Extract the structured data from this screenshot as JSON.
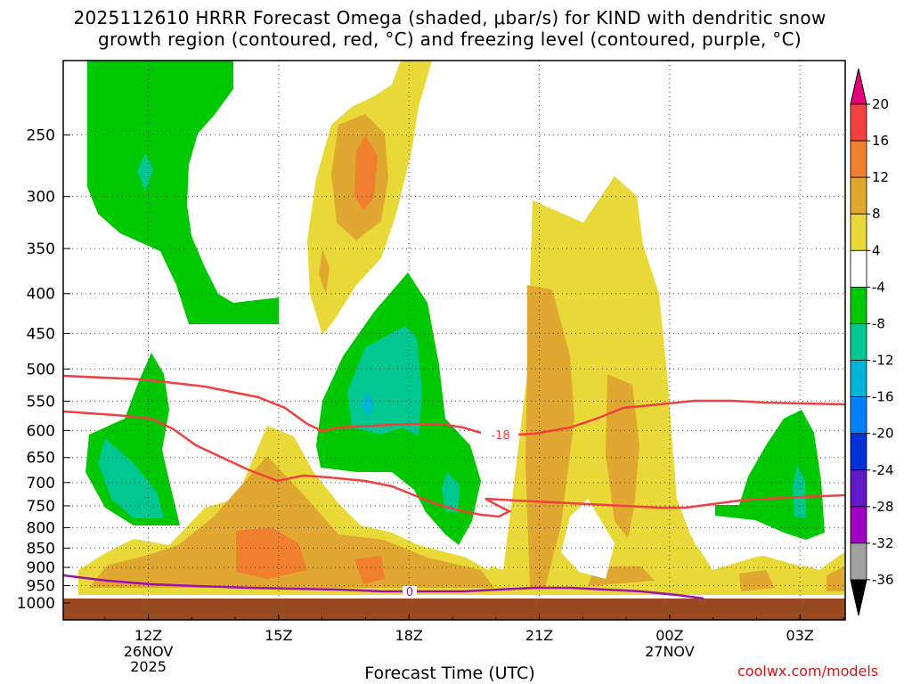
{
  "title_line1": "2025112610 HRRR Forecast Omega (shaded, μbar/s) for KIND with dendritic snow",
  "title_line2": "growth region (contoured, red, °C) and freezing level (contoured, purple, °C)",
  "xlabel": "Forecast Time (UTC)",
  "credit": "coolwx.com/models",
  "chart_data": {
    "type": "time-height cross section",
    "location": "KIND",
    "model": "HRRR",
    "run": "2025112610",
    "x_ticks": [
      {
        "label": "12Z",
        "sub": [
          "26NOV",
          "2025"
        ]
      },
      {
        "label": "15Z",
        "sub": []
      },
      {
        "label": "18Z",
        "sub": []
      },
      {
        "label": "21Z",
        "sub": []
      },
      {
        "label": "00Z",
        "sub": [
          "27NOV"
        ]
      },
      {
        "label": "03Z",
        "sub": []
      }
    ],
    "x_range_hours_from_26nov12z": [
      -2,
      16
    ],
    "y_axis": {
      "units": "hPa",
      "ticks": [
        250,
        300,
        350,
        400,
        450,
        500,
        550,
        600,
        650,
        700,
        750,
        800,
        850,
        900,
        950,
        1000
      ],
      "range": [
        1000,
        200
      ]
    },
    "grid": true,
    "colorbar": {
      "levels": [
        20,
        16,
        12,
        8,
        4,
        -4,
        -8,
        -12,
        -16,
        -20,
        -24,
        -28,
        -32,
        -36
      ],
      "colors": [
        "#e8007a",
        "#f04040",
        "#f08030",
        "#e0a830",
        "#e8d838",
        "#ffffff",
        "#00c800",
        "#00c890",
        "#00b4d8",
        "#0080ff",
        "#0030d8",
        "#6018c8",
        "#a000c0",
        "#a0a0a0",
        "#000000"
      ]
    },
    "contours": [
      {
        "name": "dendritic -18",
        "color": "#f04040",
        "label": "-18"
      },
      {
        "name": "freezing level 0",
        "color": "#a010b0",
        "label": "0"
      }
    ],
    "label_colors": {
      "dendritic": "#f04040",
      "freezing": "#a010b0",
      "ground": "#9a4a20"
    }
  }
}
